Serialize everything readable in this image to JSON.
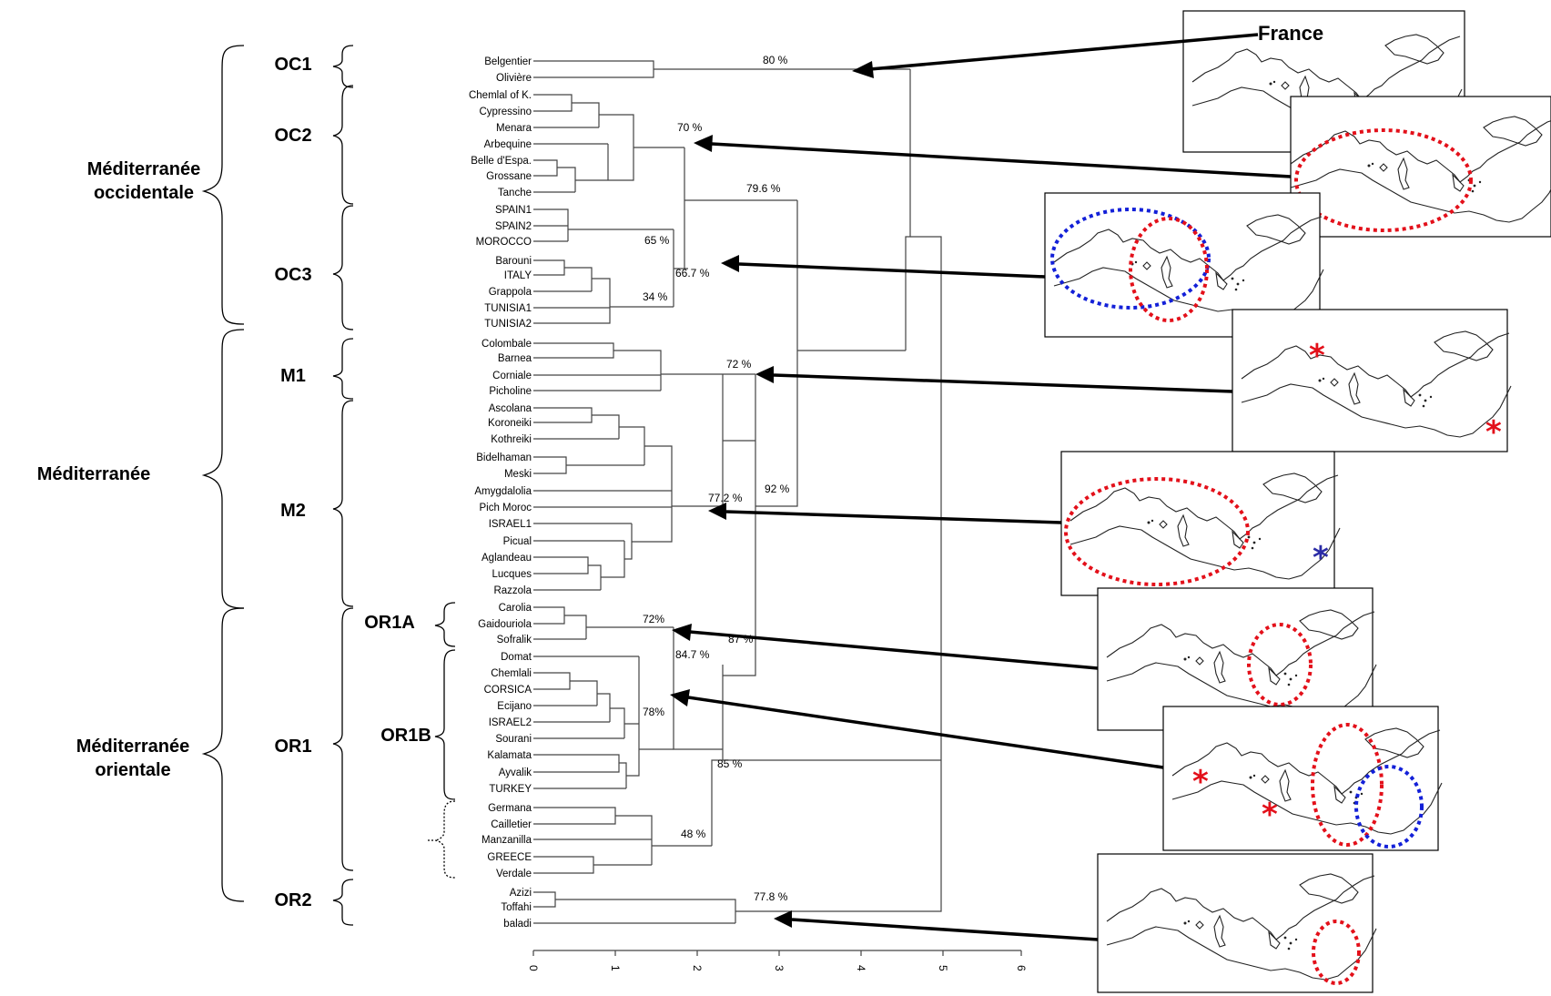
{
  "regions": [
    {
      "id": "occ",
      "lines": [
        "Méditerranée",
        "occidentale"
      ]
    },
    {
      "id": "med",
      "lines": [
        "Méditerranée"
      ]
    },
    {
      "id": "ori",
      "lines": [
        "Méditerranée",
        "orientale"
      ]
    }
  ],
  "groups": [
    "OC1",
    "OC2",
    "OC3",
    "M1",
    "M2",
    "OR1A",
    "OR1B",
    "OR1",
    "OR2"
  ],
  "leaves": [
    "Belgentier",
    "Olivière",
    "Chemlal of K.",
    "Cypressino",
    "Menara",
    "Arbequine",
    "Belle d'Espa.",
    "Grossane",
    "Tanche",
    "SPAIN1",
    "SPAIN2",
    "MOROCCO",
    "Barouni",
    "ITALY",
    "Grappola",
    "TUNISIA1",
    "TUNISIA2",
    "Colombale",
    "Barnea",
    "Corniale",
    "Picholine",
    "Ascolana",
    "Koroneiki",
    "Kothreiki",
    "Bidelhaman",
    "Meski",
    "Amygdalolia",
    "Pich Moroc",
    "ISRAEL1",
    "Picual",
    "Aglandeau",
    "Lucques",
    "Razzola",
    "Carolia",
    "Gaidouriola",
    "Sofralik",
    "Domat",
    "Chemlali",
    "CORSICA",
    "Ecijano",
    "ISRAEL2",
    "Sourani",
    "Kalamata",
    "Ayvalik",
    "TURKEY",
    "Germana",
    "Cailletier",
    "Manzanilla",
    "GREECE",
    "Verdale",
    "Azizi",
    "Toffahi",
    "baladi"
  ],
  "percentages": {
    "oc1": "80 %",
    "oc2": "70 %",
    "occ": "79.6 %",
    "sp": "65 %",
    "oc3": "66.7 %",
    "it": "34 %",
    "m1": "72 %",
    "m2": "77.2 %",
    "med": "92 %",
    "or1a": "72%",
    "or1b": "78%",
    "or1": "84.7 %",
    "or1x": "87 %",
    "or1g": "85 %",
    "gr": "48 %",
    "or2": "77.8 %"
  },
  "axis": {
    "ticks": [
      "0",
      "1",
      "2",
      "3",
      "4",
      "5",
      "6"
    ]
  },
  "maps": [
    {
      "label": "France"
    }
  ]
}
